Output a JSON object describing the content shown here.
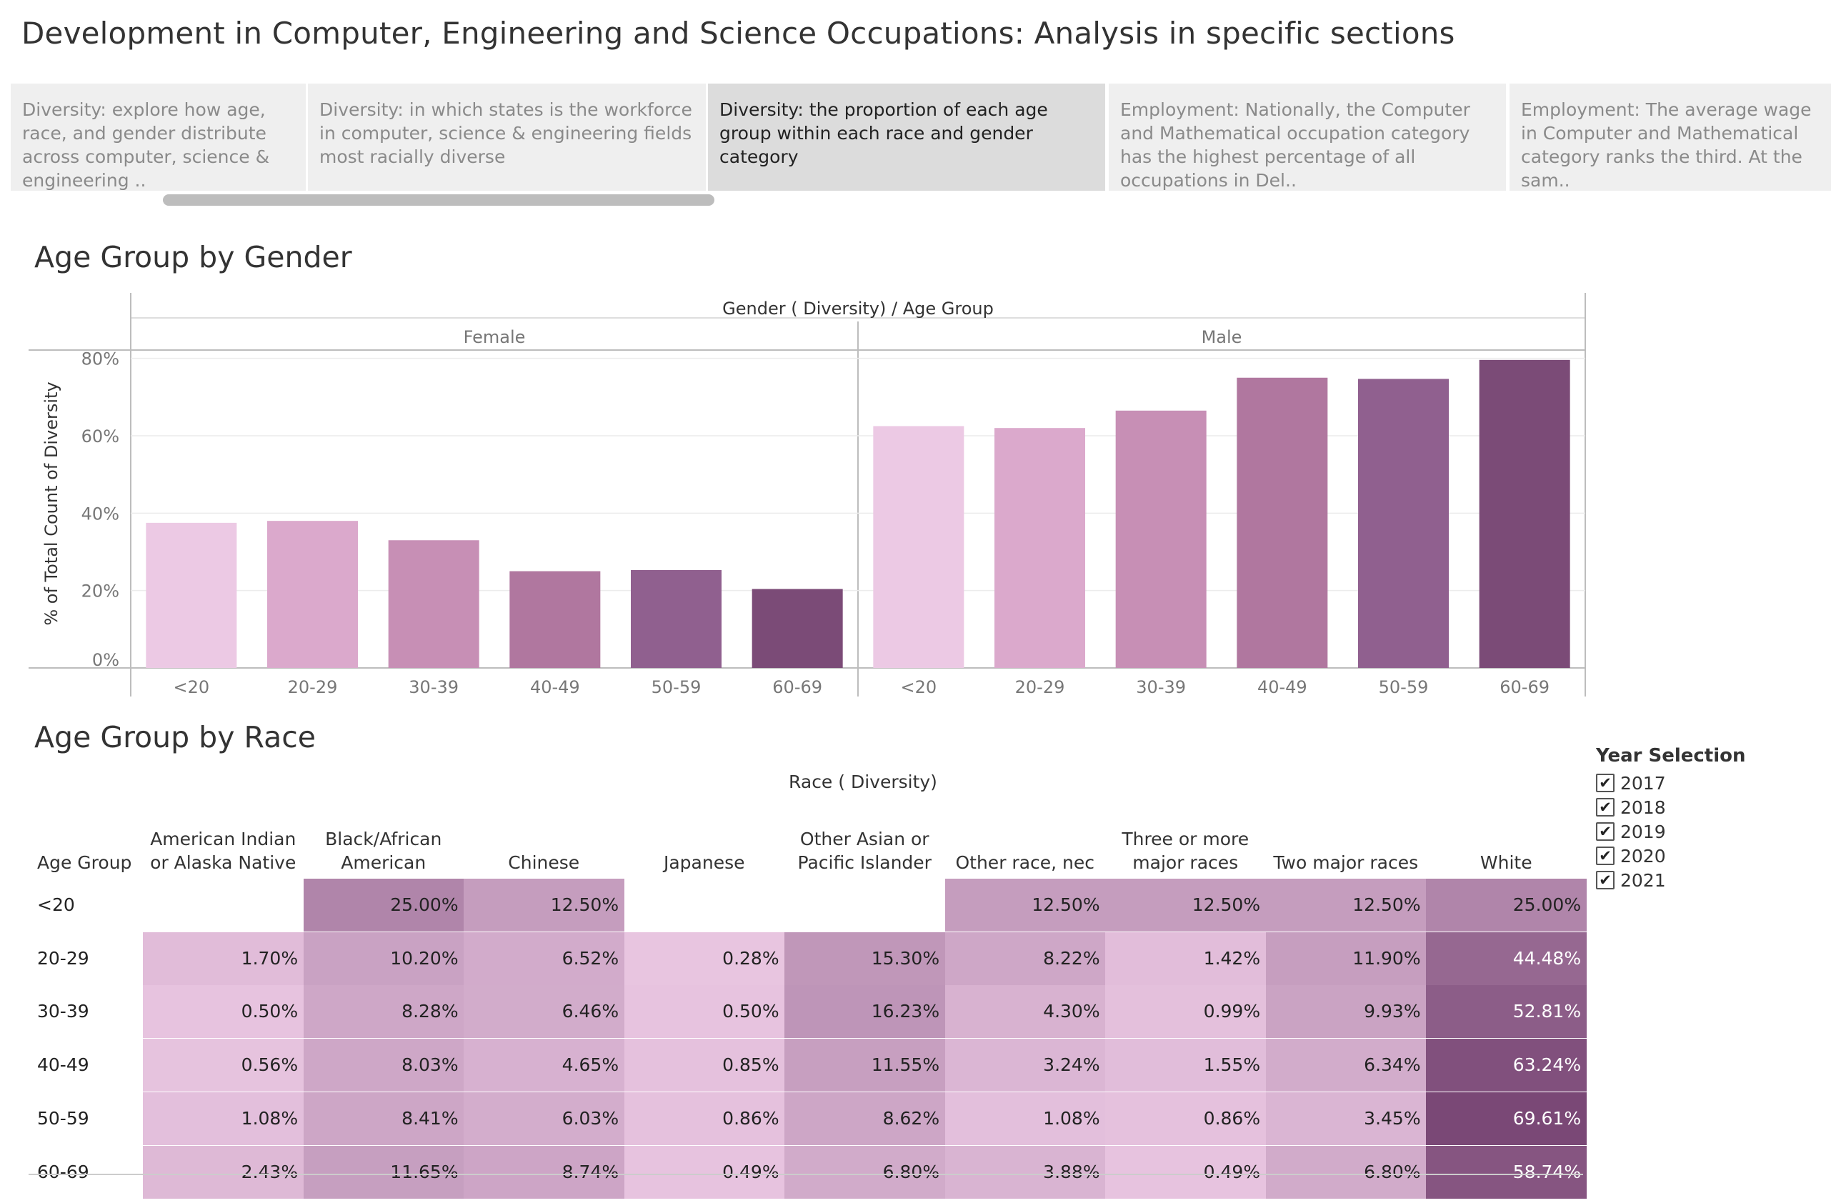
{
  "page": {
    "title": "Development in Computer, Engineering and Science Occupations: Analysis in specific sections"
  },
  "story_points": [
    {
      "text": "Diversity: explore how age, race, and gender distribute across computer, science & engineering ..",
      "active": false
    },
    {
      "text": "Diversity: in which states is the workforce in computer, science & engineering fields most racially diverse",
      "active": false
    },
    {
      "text": "Diversity: the proportion of each age group within each race and gender category",
      "active": true
    },
    {
      "text": "Employment: Nationally, the Computer and Mathematical occupation category has the highest percentage of all occupations in Del..",
      "active": false
    },
    {
      "text": "Employment:  The average wage in Computer and Mathematical category ranks the third. At the sam..",
      "active": false
    }
  ],
  "colors": {
    "age_ramp": [
      "#ecc9e4",
      "#dba9cc",
      "#c78fb5",
      "#b0779f",
      "#90608f",
      "#7b4b77"
    ],
    "gridline": "#ececec",
    "axis": "#bdbdbd"
  },
  "chart_data": [
    {
      "type": "bar",
      "title": "Age Group by Gender",
      "column_header": "Gender ( Diversity)  /  Age Group",
      "panels": [
        "Female",
        "Male"
      ],
      "categories": [
        "<20",
        "20-29",
        "30-39",
        "40-49",
        "50-59",
        "60-69"
      ],
      "series": [
        {
          "panel": "Female",
          "values": [
            37.5,
            38.0,
            33.0,
            25.0,
            25.3,
            20.4
          ]
        },
        {
          "panel": "Male",
          "values": [
            62.5,
            62.0,
            66.5,
            75.0,
            74.7,
            79.6
          ]
        }
      ],
      "ylabel": "% of Total Count of Diversity",
      "yticks": [
        "80%",
        "60%",
        "40%",
        "20%",
        "0%"
      ],
      "ylim": [
        0,
        84
      ],
      "grid": true,
      "legend": "none"
    },
    {
      "type": "heatmap",
      "title": "Age Group by Race",
      "column_header": "Race ( Diversity)",
      "row_header": "Age Group",
      "columns": [
        "American Indian or Alaska Native",
        "Black/African American",
        "Chinese",
        "Japanese",
        "Other Asian or Pacific Islander",
        "Other race, nec",
        "Three or more major races",
        "Two major races",
        "White"
      ],
      "rows": [
        "<20",
        "20-29",
        "30-39",
        "40-49",
        "50-59",
        "60-69"
      ],
      "values": [
        [
          "",
          "25.00%",
          "12.50%",
          "",
          "",
          "12.50%",
          "12.50%",
          "12.50%",
          "25.00%"
        ],
        [
          "1.70%",
          "10.20%",
          "6.52%",
          "0.28%",
          "15.30%",
          "8.22%",
          "1.42%",
          "11.90%",
          "44.48%"
        ],
        [
          "0.50%",
          "8.28%",
          "6.46%",
          "0.50%",
          "16.23%",
          "4.30%",
          "0.99%",
          "9.93%",
          "52.81%"
        ],
        [
          "0.56%",
          "8.03%",
          "4.65%",
          "0.85%",
          "11.55%",
          "3.24%",
          "1.55%",
          "6.34%",
          "63.24%"
        ],
        [
          "1.08%",
          "8.41%",
          "6.03%",
          "0.86%",
          "8.62%",
          "1.08%",
          "0.86%",
          "3.45%",
          "69.61%"
        ],
        [
          "2.43%",
          "11.65%",
          "8.74%",
          "0.49%",
          "6.80%",
          "3.88%",
          "0.49%",
          "6.80%",
          "58.74%"
        ]
      ],
      "legend": "none"
    }
  ],
  "year_filter": {
    "title": "Year Selection",
    "years": [
      {
        "label": "2017",
        "checked": true
      },
      {
        "label": "2018",
        "checked": true
      },
      {
        "label": "2019",
        "checked": true
      },
      {
        "label": "2020",
        "checked": true
      },
      {
        "label": "2021",
        "checked": true
      }
    ]
  }
}
